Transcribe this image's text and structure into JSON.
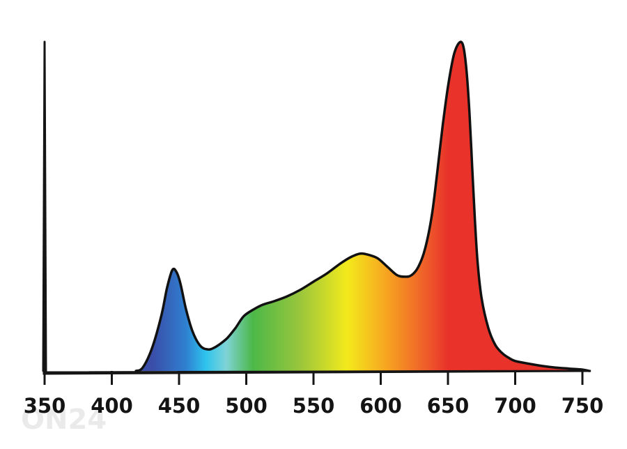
{
  "chart_data": {
    "type": "area",
    "title": "",
    "xlabel": "",
    "ylabel": "",
    "xlim": [
      350,
      755
    ],
    "ylim": [
      0,
      1
    ],
    "grid": false,
    "legend": "none",
    "x_ticks": [
      350,
      400,
      450,
      500,
      550,
      600,
      650,
      700,
      750
    ],
    "x_tick_labels": [
      "350",
      "400",
      "450",
      "500",
      "550",
      "600",
      "650",
      "700",
      "750"
    ],
    "fill": "visible-spectrum gradient by wavelength",
    "spectrum_colors": [
      {
        "nm": 430,
        "color": "#3a4ea8"
      },
      {
        "nm": 455,
        "color": "#2f7fd0"
      },
      {
        "nm": 470,
        "color": "#2ec4ee"
      },
      {
        "nm": 485,
        "color": "#7fd3d6"
      },
      {
        "nm": 505,
        "color": "#4cb848"
      },
      {
        "nm": 540,
        "color": "#9ac63c"
      },
      {
        "nm": 575,
        "color": "#f3ea1c"
      },
      {
        "nm": 605,
        "color": "#f7a321"
      },
      {
        "nm": 635,
        "color": "#ee5a2a"
      },
      {
        "nm": 650,
        "color": "#e8322a"
      },
      {
        "nm": 755,
        "color": "#e8322a"
      }
    ],
    "series": [
      {
        "x": [
          418,
          423,
          430,
          437,
          441,
          445,
          448,
          451,
          455,
          460,
          466,
          472,
          476,
          480,
          486,
          492,
          498,
          505,
          512,
          520,
          530,
          540,
          550,
          560,
          570,
          578,
          585,
          592,
          598,
          605,
          612,
          618,
          623,
          628,
          633,
          638,
          642,
          646,
          650,
          654,
          657,
          660,
          662,
          664,
          666,
          668,
          670,
          672,
          675,
          680,
          685,
          690,
          695,
          700,
          710,
          720,
          730,
          740,
          750,
          755
        ],
        "y": [
          0.0,
          0.01,
          0.07,
          0.17,
          0.25,
          0.305,
          0.3,
          0.265,
          0.19,
          0.12,
          0.075,
          0.065,
          0.07,
          0.08,
          0.1,
          0.13,
          0.165,
          0.185,
          0.2,
          0.21,
          0.225,
          0.245,
          0.27,
          0.295,
          0.325,
          0.345,
          0.355,
          0.35,
          0.34,
          0.315,
          0.29,
          0.285,
          0.29,
          0.315,
          0.37,
          0.47,
          0.6,
          0.74,
          0.86,
          0.95,
          0.985,
          0.995,
          0.97,
          0.9,
          0.78,
          0.62,
          0.46,
          0.33,
          0.22,
          0.13,
          0.08,
          0.055,
          0.04,
          0.03,
          0.022,
          0.015,
          0.01,
          0.007,
          0.004,
          0.0
        ]
      }
    ]
  },
  "watermark": "ON24"
}
